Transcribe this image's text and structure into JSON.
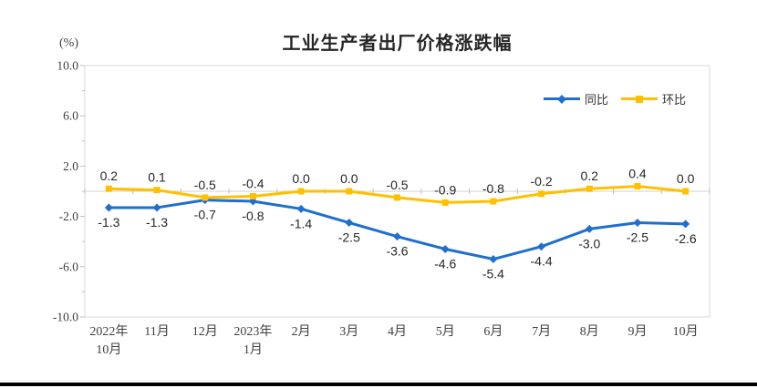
{
  "chart_data": {
    "type": "line",
    "title": "工业生产者出厂价格涨跌幅",
    "unit_label": "(%)",
    "categories": [
      [
        "2022年",
        "10月"
      ],
      [
        "11月"
      ],
      [
        "12月"
      ],
      [
        "2023年",
        "1月"
      ],
      [
        "2月"
      ],
      [
        "3月"
      ],
      [
        "4月"
      ],
      [
        "5月"
      ],
      [
        "6月"
      ],
      [
        "7月"
      ],
      [
        "8月"
      ],
      [
        "9月"
      ],
      [
        "10月"
      ]
    ],
    "series": [
      {
        "key": "yoy",
        "name": "同比",
        "color": "#1E6FD1",
        "marker": "diamond",
        "label_position": "below",
        "values": [
          -1.3,
          -1.3,
          -0.7,
          -0.8,
          -1.4,
          -2.5,
          -3.6,
          -4.6,
          -5.4,
          -4.4,
          -3.0,
          -2.5,
          -2.6
        ]
      },
      {
        "key": "mom",
        "name": "环比",
        "color": "#FFC000",
        "marker": "square",
        "label_position": "above",
        "values": [
          0.2,
          0.1,
          -0.5,
          -0.4,
          0.0,
          0.0,
          -0.5,
          -0.9,
          -0.8,
          -0.2,
          0.2,
          0.4,
          0.0
        ]
      }
    ],
    "ylim": [
      -10,
      10
    ],
    "yticks": [
      10.0,
      6.0,
      2.0,
      -2.0,
      -6.0,
      -10.0
    ],
    "legend_position": "top-right",
    "grid": false,
    "zero_line": true
  },
  "colors": {
    "axis_text": "#404040",
    "data_label": "#262626",
    "axis_line": "#D9D9D9",
    "zero_line": "#D0D0D0",
    "tick": "#BFBFBF",
    "footer_bar": "#000000"
  }
}
